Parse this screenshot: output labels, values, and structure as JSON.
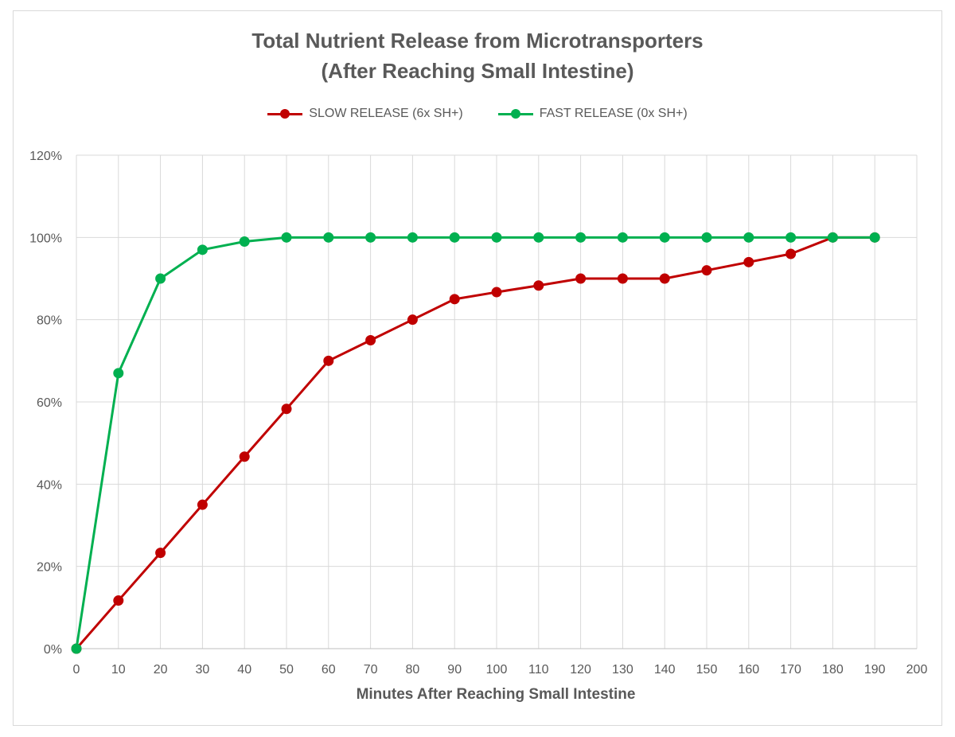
{
  "chart_data": {
    "type": "line",
    "title_line1": "Total Nutrient Release from Microtransporters",
    "title_line2": "(After Reaching Small Intestine)",
    "xlabel": "Minutes After Reaching Small Intestine",
    "ylabel": "",
    "xlim": [
      0,
      200
    ],
    "ylim": [
      0,
      120
    ],
    "x_ticks": [
      "0",
      "10",
      "20",
      "30",
      "40",
      "50",
      "60",
      "70",
      "80",
      "90",
      "100",
      "110",
      "120",
      "130",
      "140",
      "150",
      "160",
      "170",
      "180",
      "190",
      "200"
    ],
    "y_ticks": [
      "0%",
      "20%",
      "40%",
      "60%",
      "80%",
      "100%",
      "120%"
    ],
    "legend_position": "top",
    "grid": true,
    "x": [
      0,
      10,
      20,
      30,
      40,
      50,
      60,
      70,
      80,
      90,
      100,
      110,
      120,
      130,
      140,
      150,
      160,
      170,
      180,
      190
    ],
    "series": [
      {
        "name": "SLOW RELEASE (6x SH+)",
        "color": "#c00000",
        "values": [
          0,
          11.7,
          23.3,
          35,
          46.7,
          58.3,
          70,
          75,
          80,
          85,
          86.7,
          88.3,
          90,
          90,
          90,
          92,
          94,
          96,
          100,
          100
        ]
      },
      {
        "name": "FAST RELEASE (0x SH+)",
        "color": "#00b050",
        "values": [
          0,
          67,
          90,
          97,
          99,
          100,
          100,
          100,
          100,
          100,
          100,
          100,
          100,
          100,
          100,
          100,
          100,
          100,
          100,
          100
        ]
      }
    ]
  }
}
